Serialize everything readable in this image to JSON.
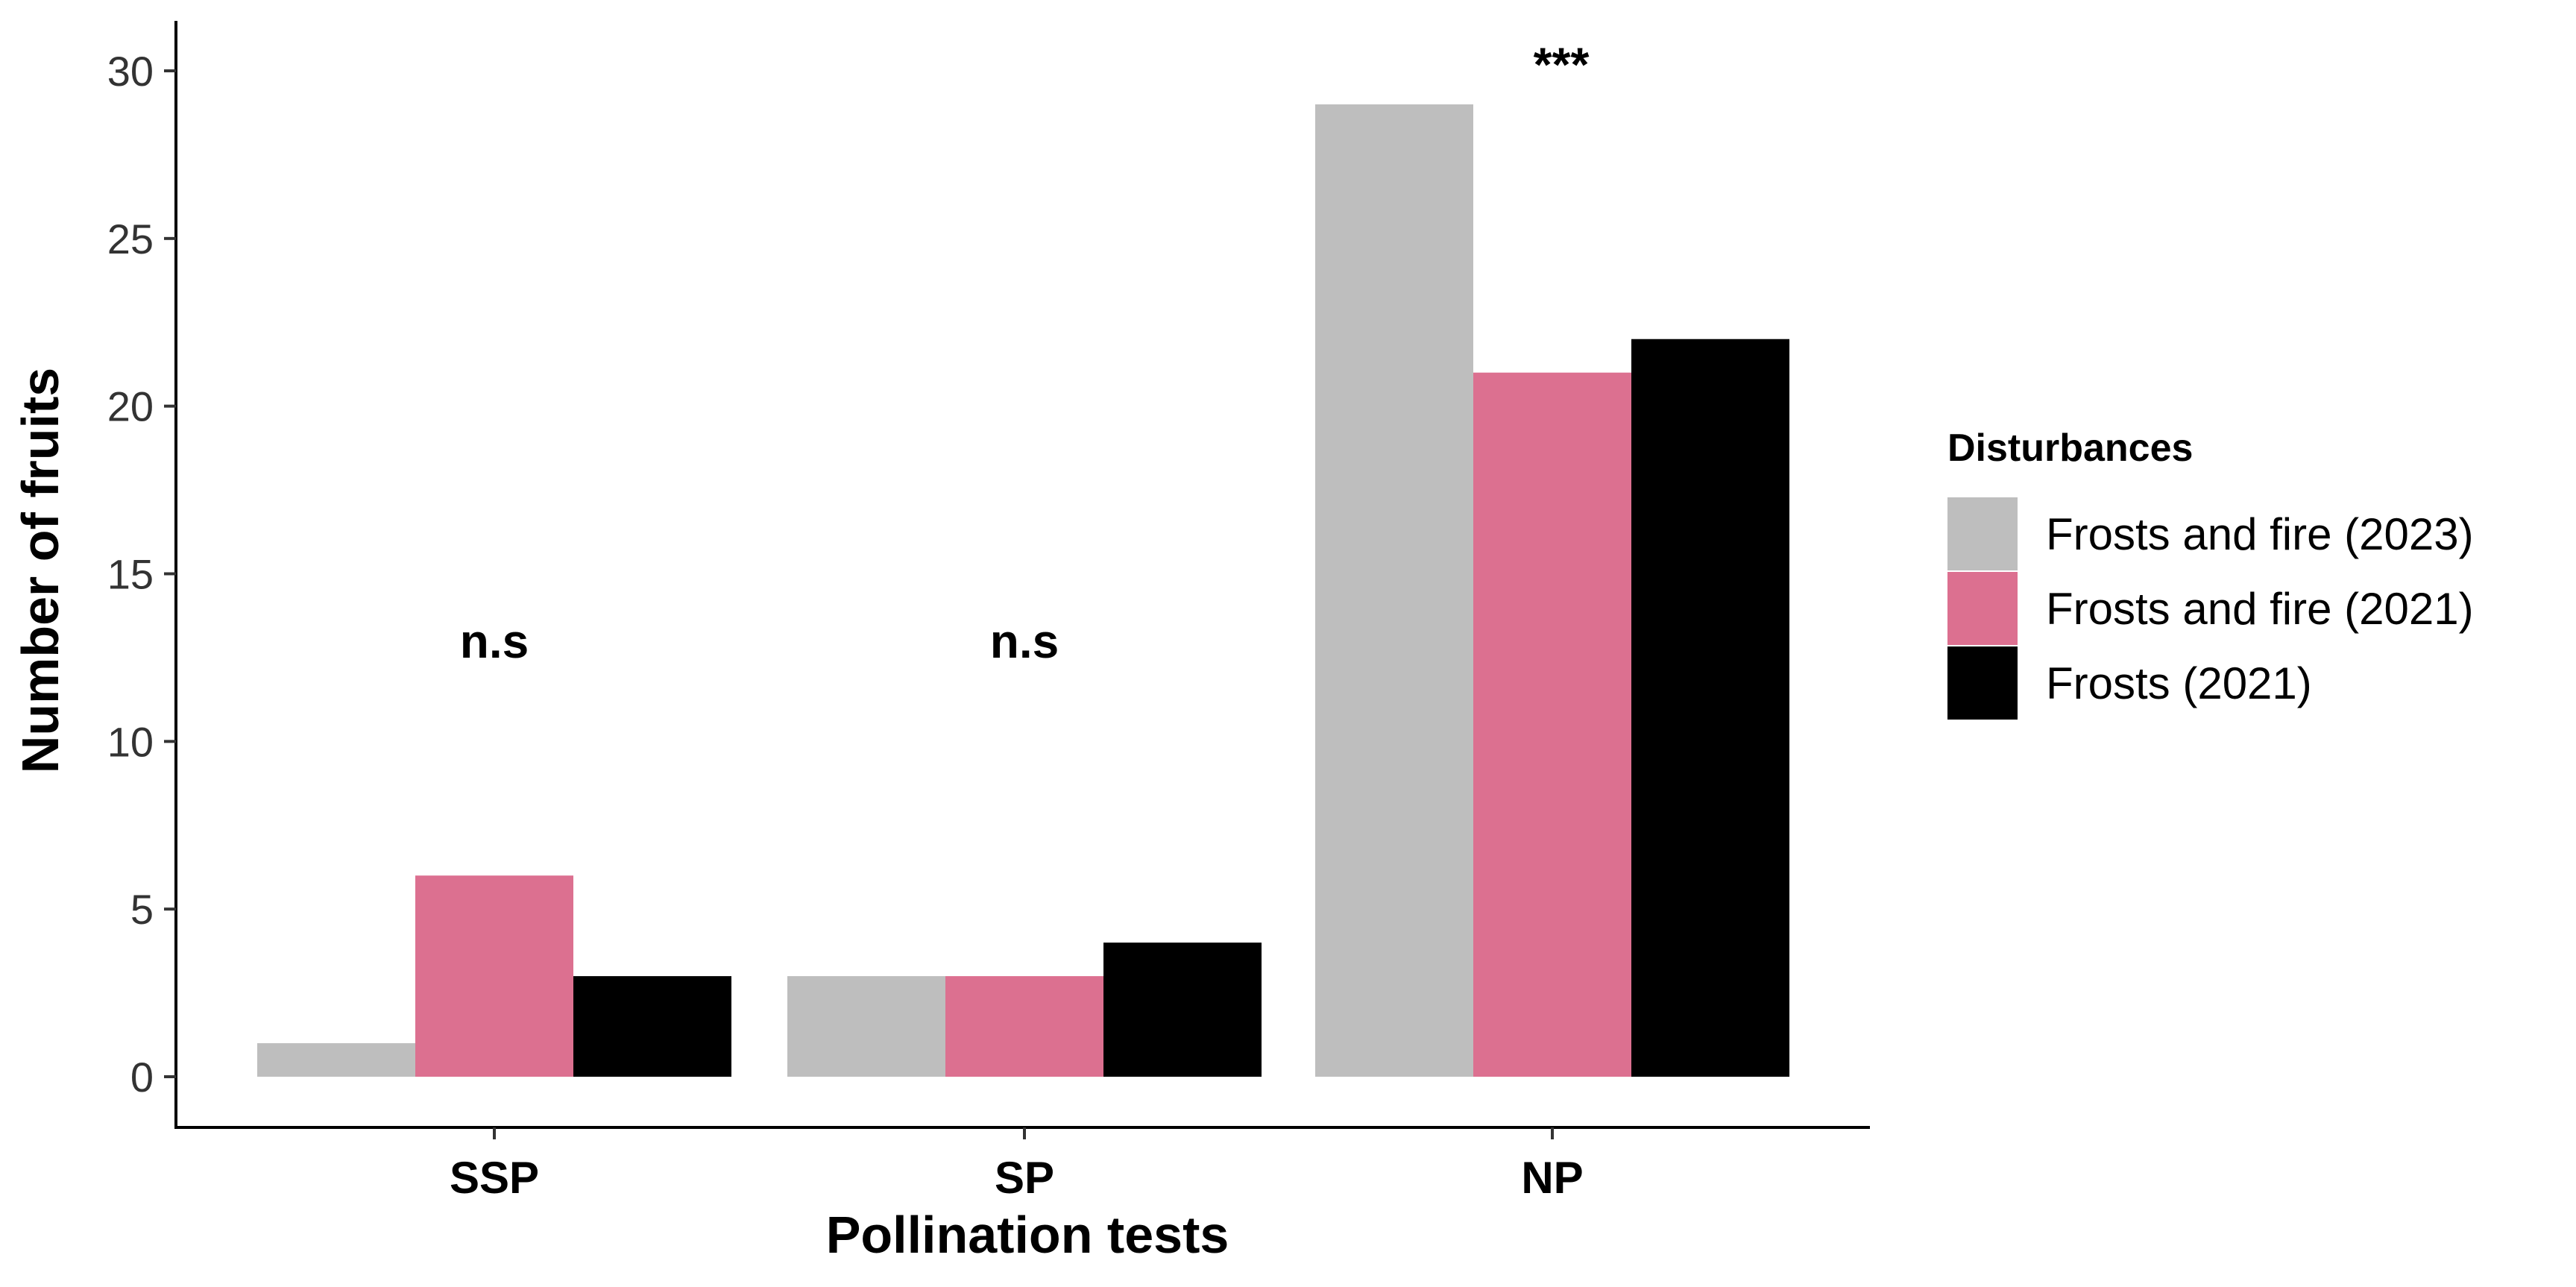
{
  "chart_data": {
    "type": "bar",
    "xlabel": "Pollination tests",
    "ylabel": "Number of fruits",
    "categories": [
      "SSP",
      "SP",
      "NP"
    ],
    "ylim": [
      0,
      30
    ],
    "yticks": [
      0,
      5,
      10,
      15,
      20,
      25,
      30
    ],
    "ytick_labels": [
      "0",
      "5",
      "10",
      "15",
      "20",
      "25",
      "30"
    ],
    "grid": false,
    "series": [
      {
        "name": "Frosts and fire (2023)",
        "color": "#bebebe",
        "values": [
          1,
          3,
          29
        ]
      },
      {
        "name": "Frosts and fire (2021)",
        "color": "#dc7090",
        "values": [
          6,
          3,
          21
        ]
      },
      {
        "name": "Frosts (2021)",
        "color": "#000000",
        "values": [
          3,
          4,
          22
        ]
      }
    ],
    "annotations": [
      {
        "category": "SSP",
        "text": "n.s",
        "y": 12.5
      },
      {
        "category": "SP",
        "text": "n.s",
        "y": 12.5
      },
      {
        "category": "NP",
        "text": "***",
        "y": 29.7
      }
    ],
    "legend": {
      "title": "Disturbances",
      "position": "right"
    }
  }
}
